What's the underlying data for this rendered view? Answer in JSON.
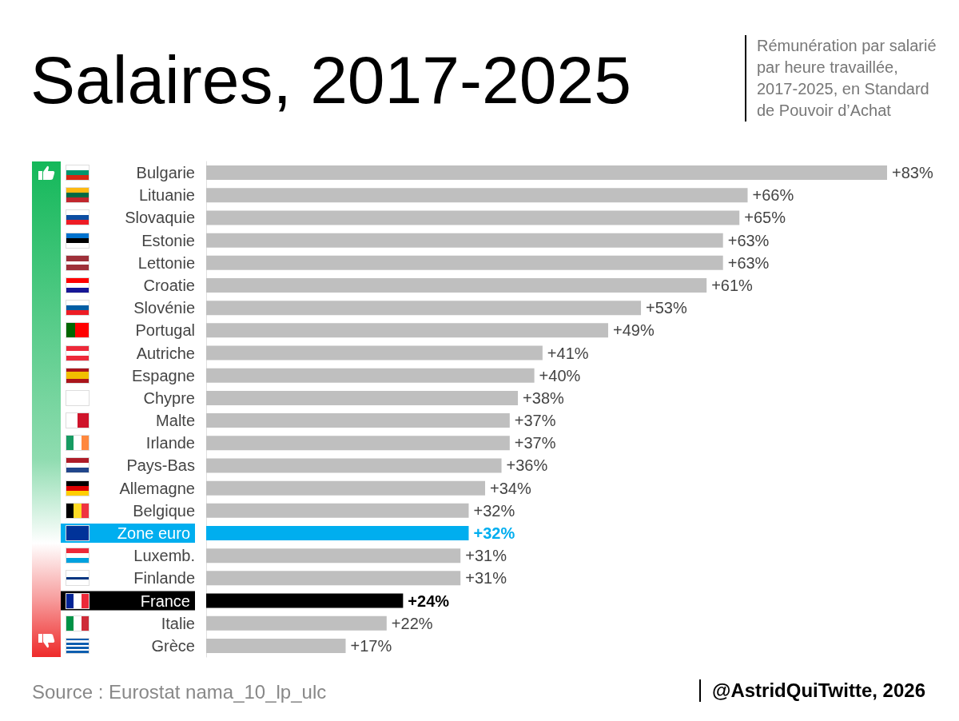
{
  "chart_data": {
    "type": "bar",
    "orientation": "horizontal",
    "title": "Salaires, 2017-2025",
    "subtitle": "Rémunération par salarié par heure travaillée, 2017-2025, en Standard de Pouvoir d’Achat",
    "categories": [
      "Bulgarie",
      "Lituanie",
      "Slovaquie",
      "Estonie",
      "Lettonie",
      "Croatie",
      "Slovénie",
      "Portugal",
      "Autriche",
      "Espagne",
      "Chypre",
      "Malte",
      "Irlande",
      "Pays-Bas",
      "Allemagne",
      "Belgique",
      "Zone euro",
      "Luxemb.",
      "Finlande",
      "France",
      "Italie",
      "Grèce"
    ],
    "values": [
      83,
      66,
      65,
      63,
      63,
      61,
      53,
      49,
      41,
      40,
      38,
      37,
      37,
      36,
      34,
      32,
      32,
      31,
      31,
      24,
      22,
      17
    ],
    "value_labels": [
      "+83%",
      "+66%",
      "+65%",
      "+63%",
      "+63%",
      "+61%",
      "+53%",
      "+49%",
      "+41%",
      "+40%",
      "+38%",
      "+37%",
      "+37%",
      "+36%",
      "+34%",
      "+32%",
      "+32%",
      "+31%",
      "+31%",
      "+24%",
      "+22%",
      "+17%"
    ],
    "color": "#bfbfbf",
    "colors": [
      "#bfbfbf",
      "#bfbfbf",
      "#bfbfbf",
      "#bfbfbf",
      "#bfbfbf",
      "#bfbfbf",
      "#bfbfbf",
      "#bfbfbf",
      "#bfbfbf",
      "#bfbfbf",
      "#bfbfbf",
      "#bfbfbf",
      "#bfbfbf",
      "#bfbfbf",
      "#bfbfbf",
      "#bfbfbf",
      "#00aeef",
      "#bfbfbf",
      "#bfbfbf",
      "#000000",
      "#bfbfbf",
      "#bfbfbf"
    ],
    "annotations": [
      "Source : Eurostat nama_10_lp_ulc",
      "@AstridQuiTwitte, 2026"
    ]
  }
}
